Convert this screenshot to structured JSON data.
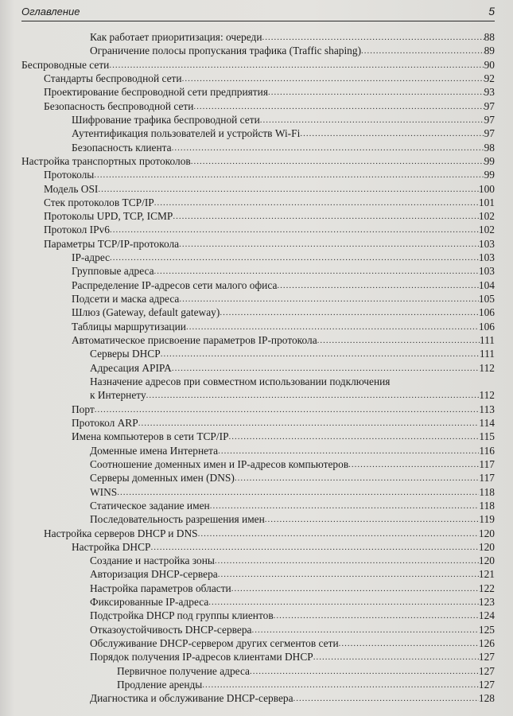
{
  "header": {
    "title": "Оглавление",
    "page_number": "5"
  },
  "entries": [
    {
      "level": 3,
      "title": "Как работает приоритизация: очереди",
      "page": "88"
    },
    {
      "level": 3,
      "title": "Ограничение полосы пропускания трафика (Traffic shaping)",
      "page": "89"
    },
    {
      "level": 0,
      "title": "Беспроводные сети",
      "page": "90"
    },
    {
      "level": 1,
      "title": "Стандарты беспроводной сети",
      "page": "92"
    },
    {
      "level": 1,
      "title": "Проектирование беспроводной сети предприятия",
      "page": "93"
    },
    {
      "level": 1,
      "title": "Безопасность беспроводной сети",
      "page": "97"
    },
    {
      "level": 2,
      "title": "Шифрование трафика беспроводной сети",
      "page": "97"
    },
    {
      "level": 2,
      "title": "Аутентификация пользователей и устройств Wi-Fi",
      "page": "97"
    },
    {
      "level": 2,
      "title": "Безопасность клиента",
      "page": "98"
    },
    {
      "level": 0,
      "title": "Настройка транспортных протоколов",
      "page": "99"
    },
    {
      "level": 1,
      "title": "Протоколы",
      "page": "99"
    },
    {
      "level": 1,
      "title": "Модель OSI",
      "page": "100"
    },
    {
      "level": 1,
      "title": "Стек протоколов TCP/IP",
      "page": "101"
    },
    {
      "level": 1,
      "title": "Протоколы UPD, TCP, ICMP",
      "page": "102"
    },
    {
      "level": 1,
      "title": "Протокол IPv6",
      "page": "102"
    },
    {
      "level": 1,
      "title": "Параметры TCP/IP-протокола",
      "page": "103"
    },
    {
      "level": 2,
      "title": "IP-адрес",
      "page": "103"
    },
    {
      "level": 2,
      "title": "Групповые адреса",
      "page": "103"
    },
    {
      "level": 2,
      "title": "Распределение IP-адресов сети малого офиса",
      "page": "104"
    },
    {
      "level": 2,
      "title": "Подсети и маска адреса",
      "page": "105"
    },
    {
      "level": 2,
      "title": "Шлюз (Gateway, default gateway)",
      "page": "106"
    },
    {
      "level": 2,
      "title": "Таблицы маршрутизации",
      "page": "106"
    },
    {
      "level": 2,
      "title": "Автоматическое присвоение параметров IP-протокола",
      "page": "111"
    },
    {
      "level": 3,
      "title": "Серверы DHCP",
      "page": "111"
    },
    {
      "level": 3,
      "title": "Адресация APIPA",
      "page": "112"
    },
    {
      "level": 3,
      "title": "Назначение адресов при совместном использовании подключения",
      "title_cont": "к Интернету",
      "page": "112"
    },
    {
      "level": 2,
      "title": "Порт",
      "page": "113"
    },
    {
      "level": 2,
      "title": "Протокол ARP",
      "page": "114"
    },
    {
      "level": 2,
      "title": "Имена компьютеров в сети TCP/IP",
      "page": "115"
    },
    {
      "level": 3,
      "title": "Доменные имена Интернета",
      "page": "116"
    },
    {
      "level": 3,
      "title": "Соотношение доменных имен и IP-адресов компьютеров",
      "page": "117"
    },
    {
      "level": 3,
      "title": "Серверы доменных имен (DNS)",
      "page": "117"
    },
    {
      "level": 3,
      "title": "WINS",
      "page": "118"
    },
    {
      "level": 3,
      "title": "Статическое задание имен",
      "page": "118"
    },
    {
      "level": 3,
      "title": "Последовательность разрешения имен",
      "page": "119"
    },
    {
      "level": 1,
      "title": "Настройка серверов DHCP и DNS",
      "page": "120"
    },
    {
      "level": 2,
      "title": "Настройка DHCP",
      "page": "120"
    },
    {
      "level": 3,
      "title": "Создание и настройка зоны",
      "page": "120"
    },
    {
      "level": 3,
      "title": "Авторизация DHCP-сервера",
      "page": "121"
    },
    {
      "level": 3,
      "title": "Настройка параметров области",
      "page": "122"
    },
    {
      "level": 3,
      "title": "Фиксированные IP-адреса",
      "page": "123"
    },
    {
      "level": 3,
      "title": "Подстройка DHCP под группы клиентов",
      "page": "124"
    },
    {
      "level": 3,
      "title": "Отказоустойчивость DHCP-сервера",
      "page": "125"
    },
    {
      "level": 3,
      "title": "Обслуживание DHCP-сервером других сегментов сети",
      "page": "126"
    },
    {
      "level": 3,
      "title": "Порядок получения IP-адресов клиентами DHCP",
      "page": "127"
    },
    {
      "level": 4,
      "title": "Первичное получение адреса",
      "page": "127"
    },
    {
      "level": 4,
      "title": "Продление аренды",
      "page": "127"
    },
    {
      "level": 3,
      "title": "Диагностика и обслуживание DHCP-сервера",
      "page": "128"
    }
  ]
}
